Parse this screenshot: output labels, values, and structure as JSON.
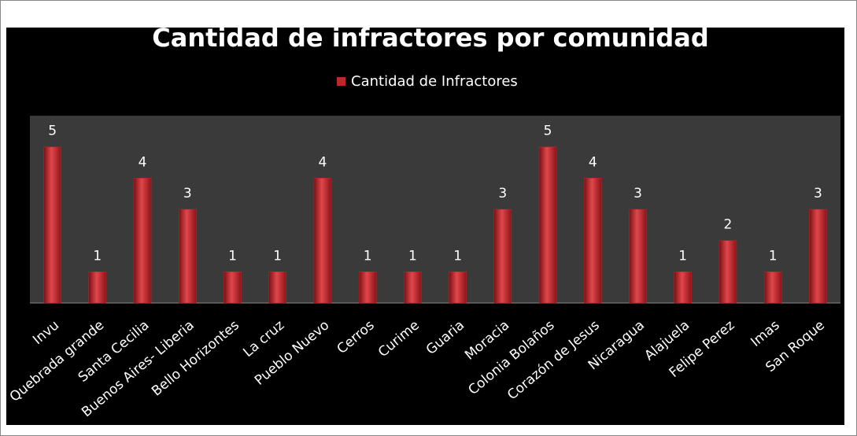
{
  "chart_data": {
    "type": "bar",
    "title": "Cantidad de infractores por comunidad",
    "categories": [
      "Invu",
      "Quebrada grande",
      "Santa Cecilia",
      "Buenos Aires- Liberia",
      "Bello Horizontes",
      "La cruz",
      "Pueblo Nuevo",
      "Cerros",
      "Curime",
      "Guaria",
      "Moracia",
      "Colonia Bolaños",
      "Corazón de Jesus",
      "Nicaragua",
      "Alajuela",
      "Felipe Perez",
      "Imas",
      "San Roque"
    ],
    "series": [
      {
        "name": "Cantidad de Infractores",
        "color": "#c0262b",
        "values": [
          5,
          1,
          4,
          3,
          1,
          1,
          4,
          1,
          1,
          1,
          3,
          5,
          4,
          3,
          1,
          2,
          1,
          3
        ]
      }
    ],
    "ylim": [
      0,
      6
    ],
    "legend": "top"
  }
}
